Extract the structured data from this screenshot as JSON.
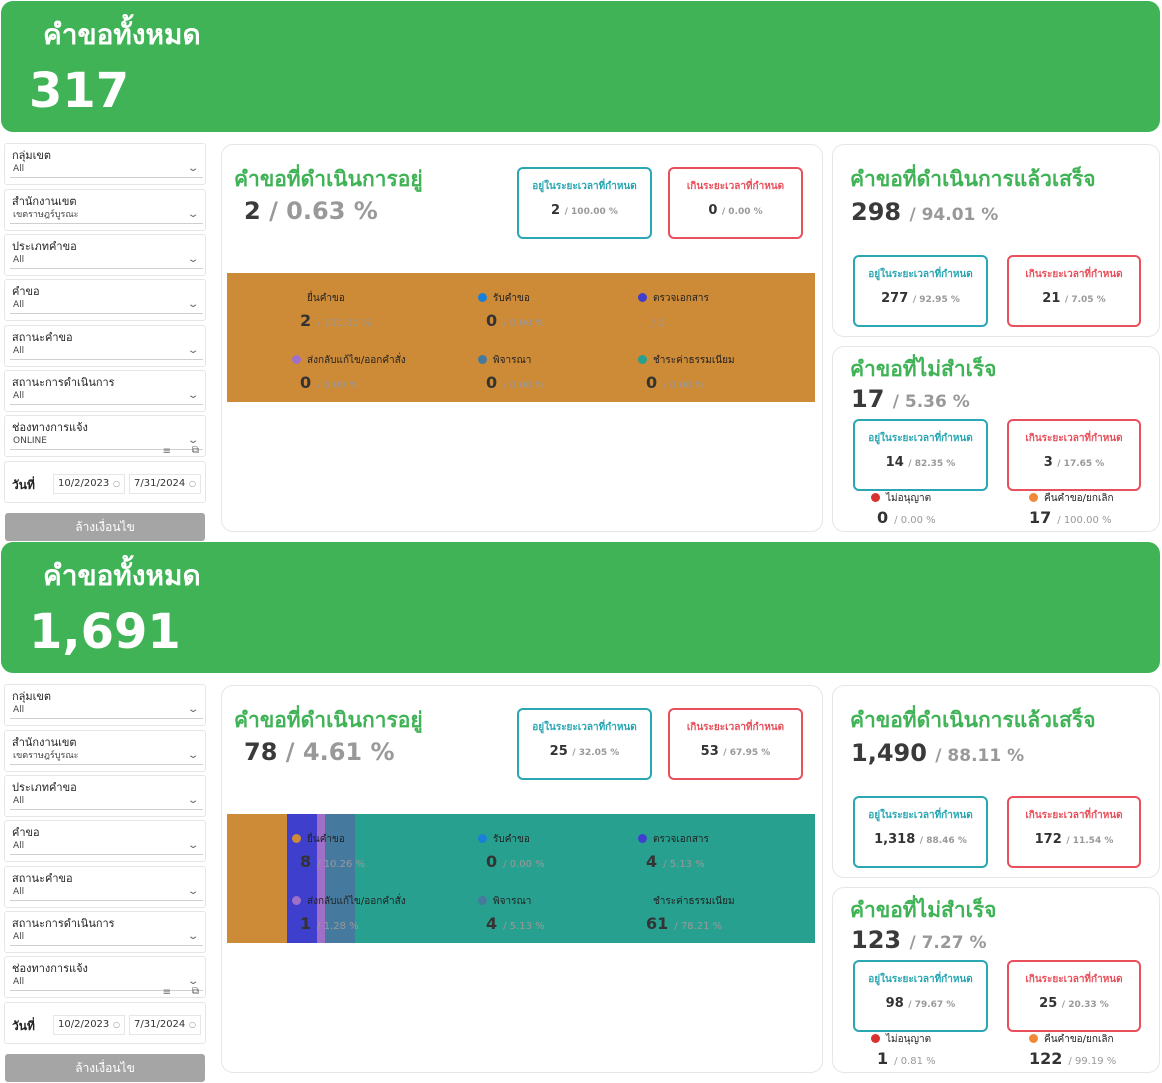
{
  "colors": {
    "green": "#3fb356",
    "teal": "#2aa7b3",
    "red": "#e8505b",
    "s1": "#cd8a37",
    "s2": "#1b7fd8",
    "s3": "#3e3fcc",
    "s4": "#a070c8",
    "s5": "#457a9e",
    "s6": "#28a090",
    "no": "#d93030",
    "ret": "#f0893a"
  },
  "labels": {
    "total": "คำขอทั้งหมด",
    "filters": [
      "กลุ่มเขต",
      "สำนักงานเขต",
      "ประเภทคำขอ",
      "คำขอ",
      "สถานะคำขอ",
      "สถานะการดำเนินการ",
      "ช่องทางการแจ้ง"
    ],
    "date": "วันที่",
    "clear": "ล้างเงื่อนไข",
    "inprogress": "คำขอที่ดำเนินการอยู่",
    "done": "คำขอที่ดำเนินการแล้วเสร็จ",
    "failed": "คำขอที่ไม่สำเร็จ",
    "within": "อยู่ในระยะเวลาที่กำหนด",
    "over": "เกินระยะเวลาที่กำหนด",
    "legend": [
      "ยื่นคำขอ",
      "รับคำขอ",
      "ตรวจเอกสาร",
      "ส่งกลับแก้ไข/ออกคำสั่ง",
      "พิจารณา",
      "ชำระค่าธรรมเนียม"
    ],
    "notallowed": "ไม่อนุญาต",
    "returned": "คืนคำขอ/ยกเลิก"
  },
  "dashboards": [
    {
      "total": "317",
      "filters": [
        "All",
        "เขตราษฎร์บูรณะ",
        "All",
        "All",
        "All",
        "All",
        "ONLINE"
      ],
      "date_from": "10/2/2023",
      "date_to": "7/31/2024",
      "inprogress": {
        "count": "2",
        "pct": "/ 0.63 %",
        "within": "2",
        "within_pct": "/ 100.00 %",
        "over": "0",
        "over_pct": "/ 0.00 %"
      },
      "stages": [
        {
          "count": "2",
          "pct": "/ 100.00 %",
          "share": 1.0
        },
        {
          "count": "0",
          "pct": "/ 0.00 %",
          "share": 0
        },
        {
          "count": "",
          "pct": "/ 0",
          "share": 0
        },
        {
          "count": "0",
          "pct": "/ 0.00 %",
          "share": 0
        },
        {
          "count": "0",
          "pct": "/ 0.00 %",
          "share": 0
        },
        {
          "count": "0",
          "pct": "/ 0.00 %",
          "share": 0
        }
      ],
      "done": {
        "count": "298",
        "pct": "/ 94.01 %",
        "within": "277",
        "within_pct": "/ 92.95 %",
        "over": "21",
        "over_pct": "/ 7.05 %"
      },
      "failed": {
        "count": "17",
        "pct": "/ 5.36 %",
        "within": "14",
        "within_pct": "/ 82.35 %",
        "over": "3",
        "over_pct": "/ 17.65 %",
        "no": "0",
        "no_pct": "/ 0.00 %",
        "ret": "17",
        "ret_pct": "/ 100.00 %"
      }
    },
    {
      "total": "1,691",
      "filters": [
        "All",
        "เขตราษฎร์บูรณะ",
        "All",
        "All",
        "All",
        "All",
        "All"
      ],
      "date_from": "10/2/2023",
      "date_to": "7/31/2024",
      "inprogress": {
        "count": "78",
        "pct": "/ 4.61 %",
        "within": "25",
        "within_pct": "/ 32.05 %",
        "over": "53",
        "over_pct": "/ 67.95 %"
      },
      "stages": [
        {
          "count": "8",
          "pct": "/ 10.26 %",
          "share": 0.1026
        },
        {
          "count": "0",
          "pct": "/ 0.00 %",
          "share": 0
        },
        {
          "count": "4",
          "pct": "/ 5.13 %",
          "share": 0.0513
        },
        {
          "count": "1",
          "pct": "/ 1.28 %",
          "share": 0.0128
        },
        {
          "count": "4",
          "pct": "/ 5.13 %",
          "share": 0.0513
        },
        {
          "count": "61",
          "pct": "/ 78.21 %",
          "share": 0.7821
        }
      ],
      "done": {
        "count": "1,490",
        "pct": "/ 88.11 %",
        "within": "1,318",
        "within_pct": "/ 88.46 %",
        "over": "172",
        "over_pct": "/ 11.54 %"
      },
      "failed": {
        "count": "123",
        "pct": "/ 7.27 %",
        "within": "98",
        "within_pct": "/ 79.67 %",
        "over": "25",
        "over_pct": "/ 20.33 %",
        "no": "1",
        "no_pct": "/ 0.81 %",
        "ret": "122",
        "ret_pct": "/ 99.19 %"
      }
    }
  ]
}
